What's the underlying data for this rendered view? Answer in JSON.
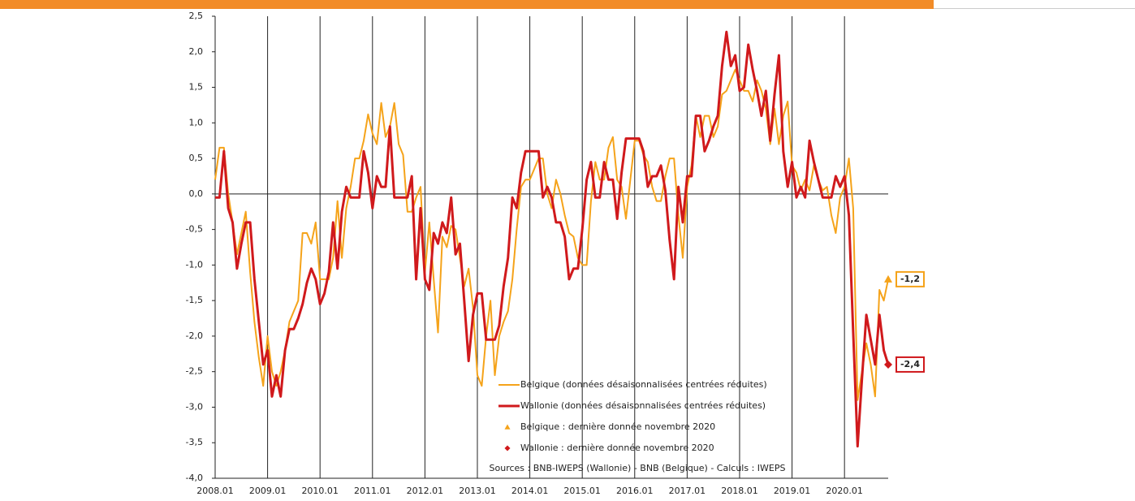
{
  "chart_data": {
    "type": "line",
    "categories": [
      "2008.01",
      null,
      null,
      null,
      null,
      null,
      null,
      null,
      null,
      null,
      null,
      null,
      "2009.01",
      null,
      null,
      null,
      null,
      null,
      null,
      null,
      null,
      null,
      null,
      null,
      "2010.01",
      null,
      null,
      null,
      null,
      null,
      null,
      null,
      null,
      null,
      null,
      null,
      "2011.01",
      null,
      null,
      null,
      null,
      null,
      null,
      null,
      null,
      null,
      null,
      null,
      "2012.01",
      null,
      null,
      null,
      null,
      null,
      null,
      null,
      null,
      null,
      null,
      null,
      "2013.01",
      null,
      null,
      null,
      null,
      null,
      null,
      null,
      null,
      null,
      null,
      null,
      "2014.01",
      null,
      null,
      null,
      null,
      null,
      null,
      null,
      null,
      null,
      null,
      null,
      "2015.01",
      null,
      null,
      null,
      null,
      null,
      null,
      null,
      null,
      null,
      null,
      null,
      "2016.01",
      null,
      null,
      null,
      null,
      null,
      null,
      null,
      null,
      null,
      null,
      null,
      "2017.01",
      null,
      null,
      null,
      null,
      null,
      null,
      null,
      null,
      null,
      null,
      null,
      "2018.01",
      null,
      null,
      null,
      null,
      null,
      null,
      null,
      null,
      null,
      null,
      null,
      "2019.01",
      null,
      null,
      null,
      null,
      null,
      null,
      null,
      null,
      null,
      null,
      null,
      "2020.01",
      null,
      null,
      null,
      null,
      null,
      null,
      null,
      null,
      null,
      null
    ],
    "series": [
      {
        "name": "Belgique (données désaisonnalisées centrées réduites)",
        "color": "#f5a31a",
        "width": 2,
        "values": [
          0.2,
          0.65,
          0.65,
          0.0,
          -0.4,
          -0.85,
          -0.55,
          -0.25,
          -1.1,
          -1.8,
          -2.3,
          -2.7,
          -2.0,
          -2.5,
          -2.7,
          -2.5,
          -2.2,
          -1.8,
          -1.65,
          -1.5,
          -0.55,
          -0.55,
          -0.7,
          -0.4,
          -1.2,
          -1.2,
          -1.2,
          -0.9,
          -0.1,
          -0.9,
          -0.2,
          0.1,
          0.5,
          0.5,
          0.75,
          1.12,
          0.85,
          0.7,
          1.28,
          0.8,
          0.95,
          1.28,
          0.7,
          0.55,
          -0.25,
          -0.25,
          -0.05,
          0.1,
          -1.1,
          -0.4,
          -1.2,
          -1.95,
          -0.6,
          -0.75,
          -0.45,
          -0.5,
          -0.9,
          -1.3,
          -1.05,
          -1.6,
          -2.55,
          -2.7,
          -2.0,
          -1.5,
          -2.55,
          -2.0,
          -1.8,
          -1.65,
          -1.2,
          -0.5,
          0.1,
          0.2,
          0.2,
          0.35,
          0.5,
          0.5,
          0.0,
          -0.2,
          0.2,
          0.0,
          -0.3,
          -0.55,
          -0.6,
          -0.9,
          -1.0,
          -1.0,
          -0.1,
          0.45,
          0.2,
          0.2,
          0.65,
          0.8,
          0.2,
          0.1,
          -0.35,
          0.2,
          0.75,
          0.75,
          0.55,
          0.45,
          0.1,
          -0.1,
          -0.1,
          0.25,
          0.5,
          0.5,
          -0.3,
          -0.9,
          0.1,
          0.4,
          1.1,
          0.8,
          1.1,
          1.1,
          0.8,
          0.95,
          1.4,
          1.45,
          1.6,
          1.75,
          1.6,
          1.45,
          1.45,
          1.3,
          1.6,
          1.45,
          1.2,
          0.7,
          1.2,
          0.7,
          1.1,
          1.3,
          0.4,
          0.3,
          0.05,
          0.2,
          0.05,
          0.4,
          0.2,
          0.05,
          0.1,
          -0.3,
          -0.55,
          -0.05,
          0.1,
          0.5,
          -0.2,
          -2.9,
          -2.5,
          -2.1,
          -2.4,
          -2.85,
          -1.35,
          -1.5,
          -1.2
        ]
      },
      {
        "name": "Wallonie (données désaisonnalisées centrées réduites)",
        "color": "#d0191c",
        "width": 3,
        "values": [
          -0.05,
          -0.05,
          0.6,
          -0.2,
          -0.4,
          -1.05,
          -0.7,
          -0.4,
          -0.4,
          -1.2,
          -1.8,
          -2.4,
          -2.2,
          -2.85,
          -2.55,
          -2.85,
          -2.2,
          -1.9,
          -1.9,
          -1.75,
          -1.55,
          -1.25,
          -1.05,
          -1.2,
          -1.55,
          -1.4,
          -1.1,
          -0.4,
          -1.05,
          -0.25,
          0.1,
          -0.05,
          -0.05,
          -0.05,
          0.6,
          0.3,
          -0.2,
          0.25,
          0.1,
          0.1,
          0.95,
          -0.05,
          -0.05,
          -0.05,
          -0.05,
          0.25,
          -1.2,
          -0.2,
          -1.2,
          -1.35,
          -0.55,
          -0.7,
          -0.4,
          -0.55,
          -0.05,
          -0.85,
          -0.7,
          -1.5,
          -2.35,
          -1.7,
          -1.4,
          -1.4,
          -2.05,
          -2.05,
          -2.05,
          -1.85,
          -1.3,
          -0.9,
          -0.05,
          -0.2,
          0.3,
          0.6,
          0.6,
          0.6,
          0.6,
          -0.05,
          0.1,
          -0.05,
          -0.4,
          -0.4,
          -0.6,
          -1.2,
          -1.05,
          -1.05,
          -0.5,
          0.2,
          0.45,
          -0.05,
          -0.05,
          0.45,
          0.2,
          0.2,
          -0.35,
          0.3,
          0.78,
          0.78,
          0.78,
          0.78,
          0.6,
          0.1,
          0.25,
          0.25,
          0.4,
          0.05,
          -0.65,
          -1.2,
          0.1,
          -0.4,
          0.25,
          0.25,
          1.1,
          1.1,
          0.6,
          0.75,
          0.95,
          1.1,
          1.8,
          2.28,
          1.8,
          1.95,
          1.45,
          1.5,
          2.1,
          1.75,
          1.45,
          1.1,
          1.45,
          0.75,
          1.4,
          1.95,
          0.6,
          0.1,
          0.45,
          -0.05,
          0.1,
          -0.05,
          0.75,
          0.45,
          0.2,
          -0.05,
          -0.05,
          -0.05,
          0.25,
          0.1,
          0.25,
          -0.3,
          -1.95,
          -3.55,
          -2.6,
          -1.7,
          -2.05,
          -2.4,
          -1.7,
          -2.2,
          -2.4
        ]
      }
    ],
    "markers": [
      {
        "name": "Belgique : dernière donnée novembre 2020",
        "color": "#f5a31a",
        "shape": "triangle",
        "value": -1.2,
        "value_label": "-1,2"
      },
      {
        "name": "Wallonie : dernière donnée novembre 2020",
        "color": "#d0191c",
        "shape": "diamond",
        "value": -2.4,
        "value_label": "-2,4"
      }
    ],
    "source": "Sources : BNB-IWEPS (Wallonie) - BNB (Belgique) - Calculs : IWEPS",
    "ylim": [
      -4.0,
      2.5
    ],
    "yticks": [
      {
        "value": -4.0,
        "label": "-4,0"
      },
      {
        "value": -3.5,
        "label": "-3,5"
      },
      {
        "value": -3.0,
        "label": "-3,0"
      },
      {
        "value": -2.5,
        "label": "-2,5"
      },
      {
        "value": -2.0,
        "label": "-2,0"
      },
      {
        "value": -1.5,
        "label": "-1,5"
      },
      {
        "value": -1.0,
        "label": "-1,0"
      },
      {
        "value": -0.5,
        "label": "-0,5"
      },
      {
        "value": 0.0,
        "label": "0,0"
      },
      {
        "value": 0.5,
        "label": "0,5"
      },
      {
        "value": 1.0,
        "label": "1,0"
      },
      {
        "value": 1.5,
        "label": "1,5"
      },
      {
        "value": 2.0,
        "label": "2,0"
      },
      {
        "value": 2.5,
        "label": "2,5"
      }
    ],
    "vertical_grid": true
  }
}
